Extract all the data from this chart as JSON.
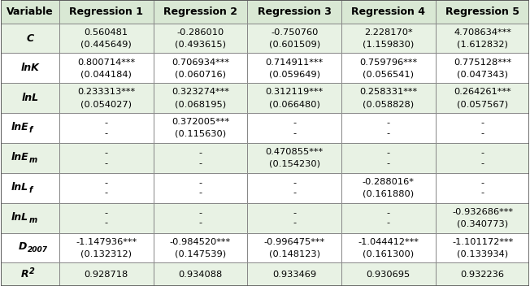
{
  "headers": [
    "Variable",
    "Regression 1",
    "Regression 2",
    "Regression 3",
    "Regression 4",
    "Regression 5"
  ],
  "rows": [
    {
      "var": "C",
      "var_style": "italic_bold",
      "values": [
        [
          "0.560481",
          "(0.445649)"
        ],
        [
          "-0.286010",
          "(0.493615)"
        ],
        [
          "-0.750760",
          "(0.601509)"
        ],
        [
          "2.228170*",
          "(1.159830)"
        ],
        [
          "4.708634***",
          "(1.612832)"
        ]
      ]
    },
    {
      "var": "lnK",
      "var_style": "italic_bold",
      "values": [
        [
          "0.800714***",
          "(0.044184)"
        ],
        [
          "0.706934***",
          "(0.060716)"
        ],
        [
          "0.714911***",
          "(0.059649)"
        ],
        [
          "0.759796***",
          "(0.056541)"
        ],
        [
          "0.775128***",
          "(0.047343)"
        ]
      ]
    },
    {
      "var": "lnL",
      "var_style": "italic_bold",
      "values": [
        [
          "0.233313***",
          "(0.054027)"
        ],
        [
          "0.323274***",
          "(0.068195)"
        ],
        [
          "0.312119***",
          "(0.066480)"
        ],
        [
          "0.258331***",
          "(0.058828)"
        ],
        [
          "0.264261***",
          "(0.057567)"
        ]
      ]
    },
    {
      "var": "lnEf",
      "var_style": "italic_bold_subscript",
      "var_main": "lnE",
      "var_sub": "f",
      "values": [
        [
          "-",
          "-"
        ],
        [
          "0.372005***",
          "(0.115630)"
        ],
        [
          "-",
          "-"
        ],
        [
          "-",
          "-"
        ],
        [
          "-",
          "-"
        ]
      ]
    },
    {
      "var": "lnEm",
      "var_style": "italic_bold_subscript",
      "var_main": "lnE",
      "var_sub": "m",
      "values": [
        [
          "-",
          "-"
        ],
        [
          "-",
          "-"
        ],
        [
          "0.470855***",
          "(0.154230)"
        ],
        [
          "-",
          "-"
        ],
        [
          "-",
          "-"
        ]
      ]
    },
    {
      "var": "lnLf",
      "var_style": "italic_bold_subscript",
      "var_main": "lnL",
      "var_sub": "f",
      "values": [
        [
          "-",
          "-"
        ],
        [
          "-",
          "-"
        ],
        [
          "-",
          "-"
        ],
        [
          "-0.288016*",
          "(0.161880)"
        ],
        [
          "-",
          "-"
        ]
      ]
    },
    {
      "var": "lnLm",
      "var_style": "italic_bold_subscript",
      "var_main": "lnL",
      "var_sub": "m",
      "values": [
        [
          "-",
          "-"
        ],
        [
          "-",
          "-"
        ],
        [
          "-",
          "-"
        ],
        [
          "-",
          "-"
        ],
        [
          "-0.932686***",
          "(0.340773)"
        ]
      ]
    },
    {
      "var": "D2007",
      "var_style": "italic_bold_subscript2",
      "var_main": "D",
      "var_sub": "2007",
      "values": [
        [
          "-1.147936***",
          "(0.132312)"
        ],
        [
          "-0.984520***",
          "(0.147539)"
        ],
        [
          "-0.996475***",
          "(0.148123)"
        ],
        [
          "-1.044412***",
          "(0.161300)"
        ],
        [
          "-1.101172***",
          "(0.133934)"
        ]
      ]
    },
    {
      "var": "R2",
      "var_style": "italic_bold_super",
      "var_main": "R",
      "var_sup": "2",
      "values": [
        [
          "0.928718",
          ""
        ],
        [
          "0.934088",
          ""
        ],
        [
          "0.933469",
          ""
        ],
        [
          "0.930695",
          ""
        ],
        [
          "0.932236",
          ""
        ]
      ]
    }
  ],
  "bg_color_header": "#d9e8d4",
  "bg_color_odd": "#e8f2e4",
  "bg_color_even": "#ffffff",
  "border_color": "#888888",
  "header_font_size": 9,
  "cell_font_size": 8.2,
  "var_font_size": 9
}
